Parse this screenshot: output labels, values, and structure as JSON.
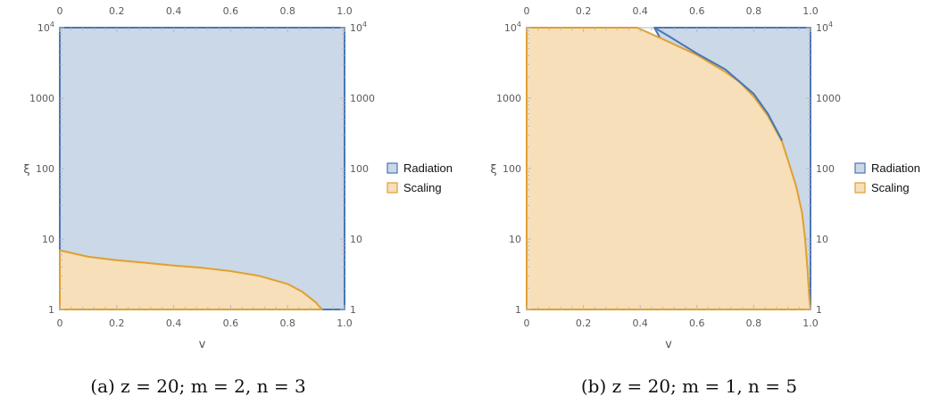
{
  "chart_data": [
    {
      "type": "area",
      "xlabel": "v",
      "ylabel": "ξ",
      "xlim": [
        0,
        1
      ],
      "ylim": [
        1,
        10000
      ],
      "y_scale": "log",
      "x_ticks": [
        "0",
        "0.2",
        "0.4",
        "0.6",
        "0.8",
        "1.0"
      ],
      "x_ticks_top": [
        "0",
        "0.2",
        "0.4",
        "0.6",
        "0.8",
        "1.0"
      ],
      "y_ticks": [
        "1",
        "10",
        "100",
        "1000",
        "10^4"
      ],
      "legend_position": "right",
      "caption": "(a) z = 20; m = 2, n = 3",
      "series": [
        {
          "name": "Radiation",
          "color": "#4a76b5",
          "fill": "#cbd8e7",
          "region": [
            [
              0,
              1
            ],
            [
              1,
              1
            ],
            [
              1,
              10000
            ],
            [
              0,
              10000
            ]
          ]
        },
        {
          "name": "Scaling",
          "color": "#e0a030",
          "fill": "#f6dfb9",
          "boundary": [
            [
              0,
              6.9
            ],
            [
              0.1,
              5.6
            ],
            [
              0.2,
              5.0
            ],
            [
              0.3,
              4.6
            ],
            [
              0.4,
              4.2
            ],
            [
              0.5,
              3.9
            ],
            [
              0.6,
              3.5
            ],
            [
              0.7,
              3.0
            ],
            [
              0.8,
              2.3
            ],
            [
              0.85,
              1.8
            ],
            [
              0.9,
              1.25
            ],
            [
              0.92,
              1.0
            ]
          ]
        }
      ]
    },
    {
      "type": "area",
      "xlabel": "v",
      "ylabel": "ξ",
      "xlim": [
        0,
        1
      ],
      "ylim": [
        1,
        10000
      ],
      "y_scale": "log",
      "x_ticks": [
        "0",
        "0.2",
        "0.4",
        "0.6",
        "0.8",
        "1.0"
      ],
      "x_ticks_top": [
        "0",
        "0.2",
        "0.4",
        "0.6",
        "0.8",
        "1.0"
      ],
      "y_ticks": [
        "1",
        "10",
        "100",
        "1000",
        "10^4"
      ],
      "legend_position": "right",
      "caption": "(b) z = 20; m = 1, n = 5",
      "series": [
        {
          "name": "Radiation",
          "color": "#4a76b5",
          "fill": "#cbd8e7",
          "region": [
            [
              0.45,
              10000
            ],
            [
              1,
              10000
            ],
            [
              1,
              1
            ],
            [
              0.99,
              1
            ]
          ]
        },
        {
          "name": "Scaling",
          "color": "#e0a030",
          "fill": "#f6dfb9",
          "boundary": [
            [
              0,
              10000
            ],
            [
              0.39,
              10000
            ],
            [
              0.5,
              6300
            ],
            [
              0.6,
              4100
            ],
            [
              0.7,
              2350
            ],
            [
              0.75,
              1700
            ],
            [
              0.8,
              1050
            ],
            [
              0.85,
              560
            ],
            [
              0.9,
              240
            ],
            [
              0.93,
              100
            ],
            [
              0.95,
              55
            ],
            [
              0.97,
              24
            ],
            [
              0.98,
              11
            ],
            [
              0.99,
              3.5
            ],
            [
              0.995,
              1.6
            ],
            [
              1.0,
              1.0
            ]
          ],
          "radiation_edge": [
            [
              0.45,
              10000
            ],
            [
              0.5,
              7600
            ],
            [
              0.6,
              4300
            ],
            [
              0.7,
              2550
            ],
            [
              0.8,
              1150
            ],
            [
              0.85,
              600
            ],
            [
              0.9,
              250
            ]
          ]
        }
      ]
    }
  ]
}
